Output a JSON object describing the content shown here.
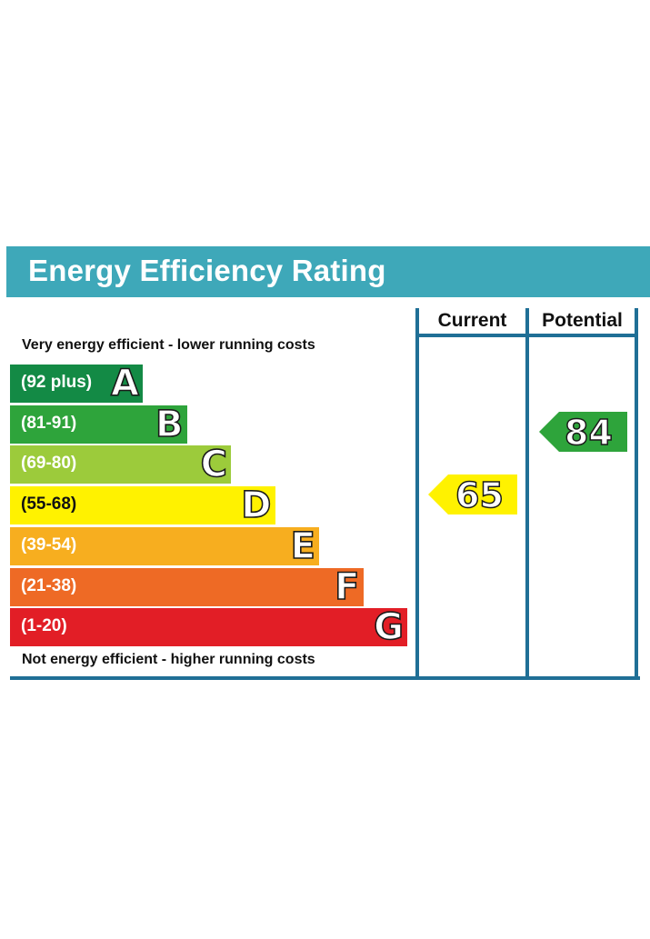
{
  "title": "Energy Efficiency Rating",
  "top_caption": "Very energy efficient - lower running costs",
  "bottom_caption": "Not energy efficient - higher running costs",
  "columns": {
    "current": "Current",
    "potential": "Potential"
  },
  "chart_data": {
    "type": "bar",
    "bands": [
      {
        "letter": "A",
        "range": "(92 plus)",
        "color": "#138a45"
      },
      {
        "letter": "B",
        "range": "(81-91)",
        "color": "#2ea43b"
      },
      {
        "letter": "C",
        "range": "(69-80)",
        "color": "#9ccb3b"
      },
      {
        "letter": "D",
        "range": "(55-68)",
        "color": "#fff200"
      },
      {
        "letter": "E",
        "range": "(39-54)",
        "color": "#f7ae1f"
      },
      {
        "letter": "F",
        "range": "(21-38)",
        "color": "#ee6a25"
      },
      {
        "letter": "G",
        "range": "(1-20)",
        "color": "#e21e26"
      }
    ],
    "current": {
      "value": "65",
      "band": "D",
      "color": "#fff200"
    },
    "potential": {
      "value": "84",
      "band": "B",
      "color": "#2ea43b"
    }
  }
}
